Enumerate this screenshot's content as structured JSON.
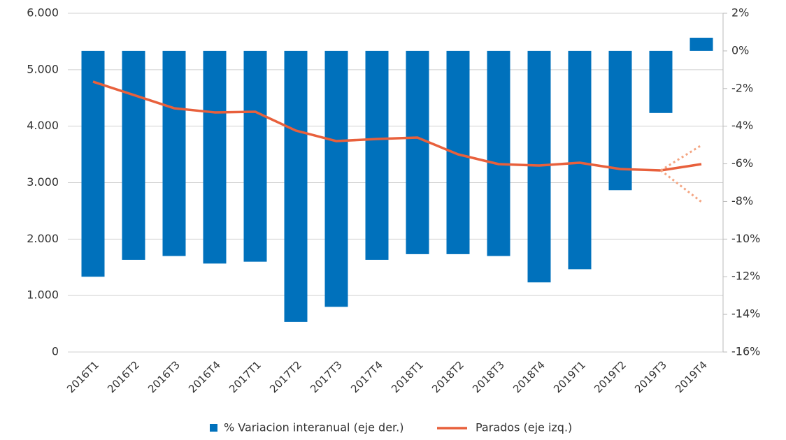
{
  "chart_data": {
    "type": "bar-line",
    "categories": [
      "2016T1",
      "2016T2",
      "2016T3",
      "2016T4",
      "2017T1",
      "2017T2",
      "2017T3",
      "2017T4",
      "2018T1",
      "2018T2",
      "2018T3",
      "2018T4",
      "2019T1",
      "2019T2",
      "2019T3",
      "2019T4"
    ],
    "series": [
      {
        "name": "% Variacion interanual (eje der.)",
        "type": "bar",
        "axis": "y2",
        "color": "#0071bc",
        "values": [
          -12.0,
          -11.1,
          -10.9,
          -11.3,
          -11.2,
          -14.4,
          -13.6,
          -11.1,
          -10.8,
          -10.8,
          -10.9,
          -12.3,
          -11.6,
          -7.4,
          -3.3,
          0.7
        ]
      },
      {
        "name": "Parados (eje izq.)",
        "type": "line",
        "axis": "y",
        "color": "#e8603c",
        "values": [
          4788,
          4553,
          4318,
          4244,
          4256,
          3922,
          3736,
          3773,
          3798,
          3501,
          3328,
          3303,
          3353,
          3241,
          3217,
          3328
        ]
      }
    ],
    "projection": {
      "color": "#f4a582",
      "upper": [
        null,
        null,
        null,
        null,
        null,
        null,
        null,
        null,
        null,
        null,
        null,
        null,
        null,
        null,
        3217,
        3662
      ],
      "lower": [
        null,
        null,
        null,
        null,
        null,
        null,
        null,
        null,
        null,
        null,
        null,
        null,
        null,
        null,
        3217,
        2660
      ]
    },
    "ylim": [
      0,
      6000
    ],
    "yticks": [
      {
        "value": 0,
        "label": "0"
      },
      {
        "value": 1000,
        "label": "1.000"
      },
      {
        "value": 2000,
        "label": "2.000"
      },
      {
        "value": 3000,
        "label": "3.000"
      },
      {
        "value": 4000,
        "label": "4.000"
      },
      {
        "value": 5000,
        "label": "5.000"
      },
      {
        "value": 6000,
        "label": "6.000"
      }
    ],
    "y2lim": [
      -16,
      2
    ],
    "y2ticks": [
      {
        "value": 2,
        "label": "2%"
      },
      {
        "value": 0,
        "label": "0%"
      },
      {
        "value": -2,
        "label": "-2%"
      },
      {
        "value": -4,
        "label": "-4%"
      },
      {
        "value": -6,
        "label": "-6%"
      },
      {
        "value": -8,
        "label": "-8%"
      },
      {
        "value": -10,
        "label": "-10%"
      },
      {
        "value": -12,
        "label": "-12%"
      },
      {
        "value": -14,
        "label": "-14%"
      },
      {
        "value": -16,
        "label": "-16%"
      }
    ],
    "grid": true,
    "legend": "bottom"
  }
}
